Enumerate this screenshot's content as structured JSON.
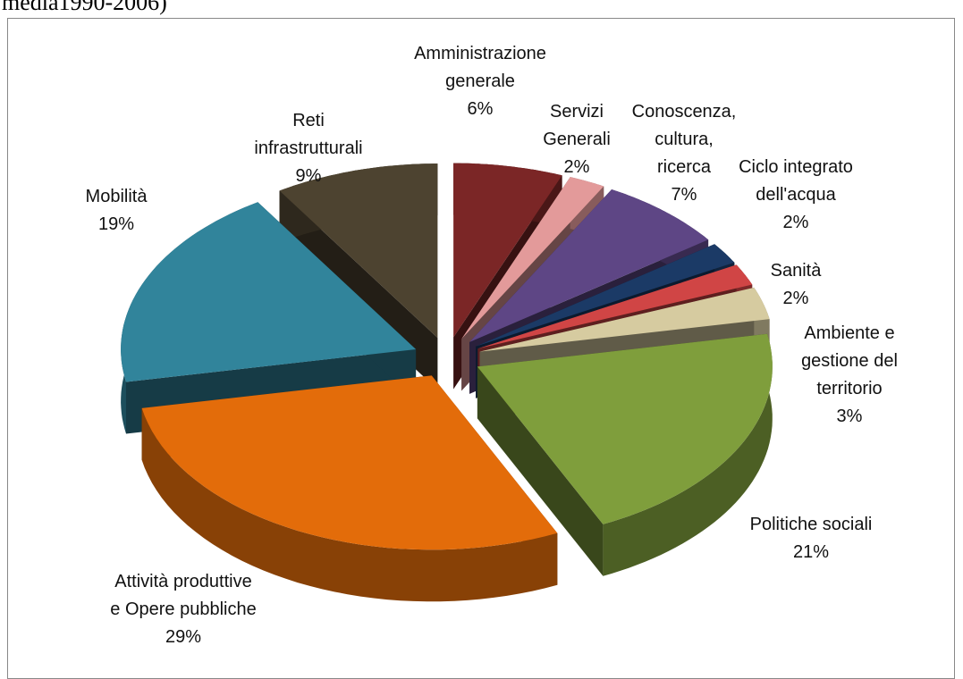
{
  "chart_data": {
    "type": "pie3d",
    "caption": "media1990-2006)",
    "categories": [
      "Amministrazione\ngenerale",
      "Servizi\nGenerali",
      "Conoscenza,\ncultura,\nricerca",
      "Ciclo integrato\ndell'acqua",
      "Sanità",
      "Ambiente e\ngestione del\nterritorio",
      "Politiche sociali",
      "Attività produttive\ne Opere pubbliche",
      "Mobilità",
      "Reti\ninfrastrutturali"
    ],
    "values": [
      6,
      2,
      7,
      2,
      2,
      3,
      21,
      29,
      19,
      9
    ],
    "value_labels": [
      "6%",
      "2%",
      "7%",
      "2%",
      "2%",
      "3%",
      "21%",
      "29%",
      "19%",
      "9%"
    ],
    "colors": [
      "#7b2626",
      "#e39a9a",
      "#5e4685",
      "#1b3a66",
      "#d04545",
      "#d6cba0",
      "#7f9e3c",
      "#e36c0a",
      "#31849b",
      "#4d4330"
    ]
  }
}
